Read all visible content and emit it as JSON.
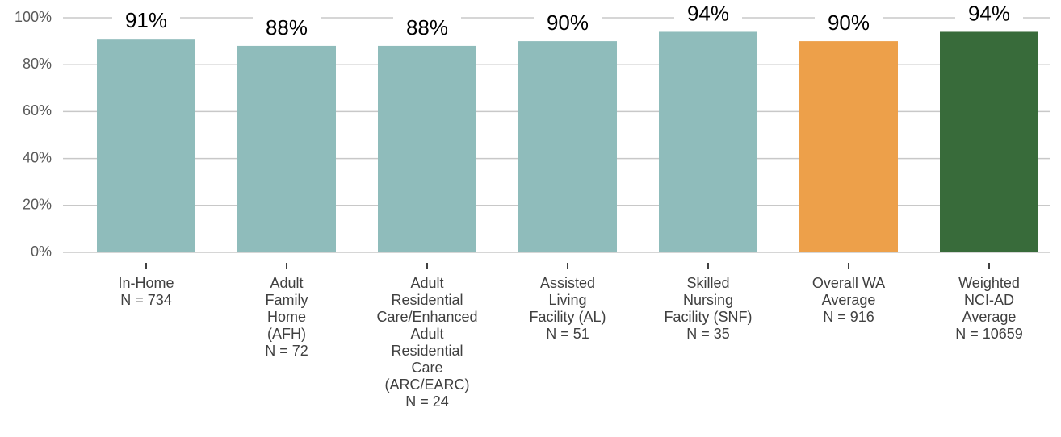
{
  "chart_data": {
    "type": "bar",
    "categories": [
      [
        "In-Home",
        "N = 734"
      ],
      [
        "Adult",
        "Family",
        "Home",
        "(AFH)",
        "N = 72"
      ],
      [
        "Adult",
        "Residential",
        "Care/Enhanced",
        "Adult",
        "Residential",
        "Care",
        "(ARC/EARC)",
        "N = 24"
      ],
      [
        "Assisted",
        "Living",
        "Facility (AL)",
        "N = 51"
      ],
      [
        "Skilled",
        "Nursing",
        "Facility (SNF)",
        "N = 35"
      ],
      [
        "Overall WA",
        "Average",
        "N = 916"
      ],
      [
        "Weighted",
        "NCI-AD",
        "Average",
        "N = 10659"
      ]
    ],
    "values": [
      91,
      88,
      88,
      90,
      94,
      90,
      94
    ],
    "value_labels": [
      "91%",
      "88%",
      "88%",
      "90%",
      "94%",
      "90%",
      "94%"
    ],
    "colors": [
      "#8fbcbb",
      "#8fbcbb",
      "#8fbcbb",
      "#8fbcbb",
      "#8fbcbb",
      "#eda04a",
      "#386b3a"
    ],
    "ylim": [
      0,
      100
    ],
    "yticks": [
      {
        "value": 0,
        "label": "0%"
      },
      {
        "value": 20,
        "label": "20%"
      },
      {
        "value": 40,
        "label": "40%"
      },
      {
        "value": 60,
        "label": "60%"
      },
      {
        "value": 80,
        "label": "80%"
      },
      {
        "value": 100,
        "label": "100%"
      }
    ],
    "grid": true
  }
}
